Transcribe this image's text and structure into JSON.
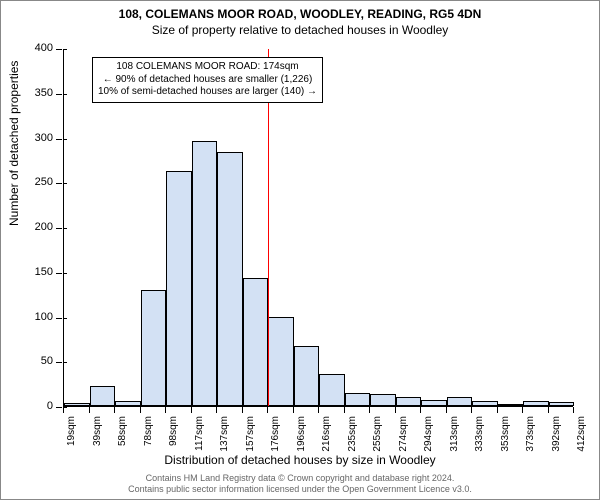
{
  "title": "108, COLEMANS MOOR ROAD, WOODLEY, READING, RG5 4DN",
  "subtitle": "Size of property relative to detached houses in Woodley",
  "ylabel": "Number of detached properties",
  "xlabel": "Distribution of detached houses by size in Woodley",
  "chart": {
    "type": "histogram",
    "bar_fill": "#d3e1f4",
    "bar_stroke": "#000000",
    "background": "#ffffff",
    "ylim": [
      0,
      400
    ],
    "ytick_step": 50,
    "yticks": [
      0,
      50,
      100,
      150,
      200,
      250,
      300,
      350,
      400
    ],
    "xtick_labels": [
      "19sqm",
      "39sqm",
      "58sqm",
      "78sqm",
      "98sqm",
      "117sqm",
      "137sqm",
      "157sqm",
      "176sqm",
      "196sqm",
      "216sqm",
      "235sqm",
      "255sqm",
      "274sqm",
      "294sqm",
      "313sqm",
      "333sqm",
      "353sqm",
      "373sqm",
      "392sqm",
      "412sqm"
    ],
    "values": [
      3,
      22,
      6,
      130,
      263,
      296,
      284,
      143,
      100,
      67,
      36,
      14,
      13,
      10,
      7,
      10,
      6,
      0,
      6,
      4
    ],
    "marker_bin_index": 8,
    "marker_color": "#ff0000",
    "axis_color": "#000000",
    "tick_fontsize": 10,
    "label_fontsize": 12,
    "title_fontsize": 12
  },
  "annotation": {
    "line1": "108 COLEMANS MOOR ROAD: 174sqm",
    "line2": "← 90% of detached houses are smaller (1,226)",
    "line3": "10% of semi-detached houses are larger (140) →"
  },
  "footer": {
    "line1": "Contains HM Land Registry data © Crown copyright and database right 2024.",
    "line2": "Contains public sector information licensed under the Open Government Licence v3.0."
  }
}
